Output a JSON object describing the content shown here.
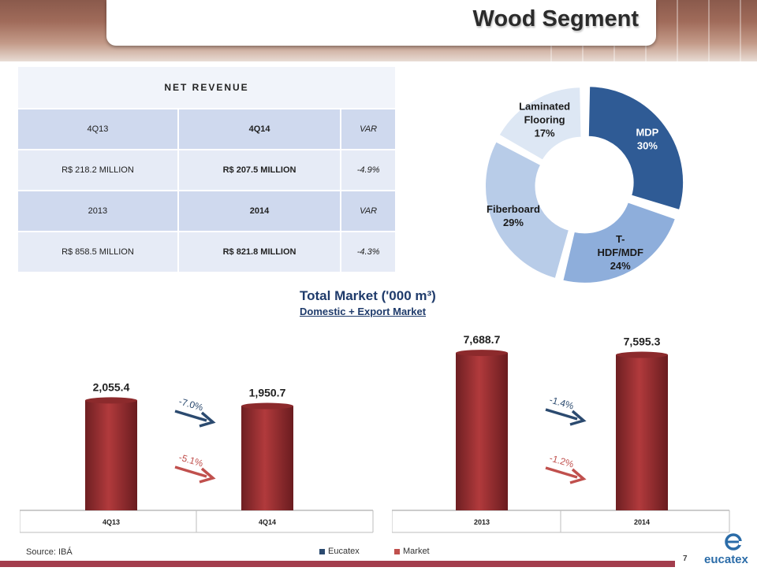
{
  "header": {
    "title": "Wood Segment"
  },
  "net_table": {
    "header": "NET REVENUE",
    "rows": [
      [
        "4Q13",
        "4Q14",
        "VAR"
      ],
      [
        "R$ 218.2 MILLION",
        "R$ 207.5 MILLION",
        "-4.9%"
      ],
      [
        "2013",
        "2014",
        "VAR"
      ],
      [
        "R$ 858.5 MILLION",
        "R$ 821.8 MILLION",
        "-4.3%"
      ]
    ]
  },
  "market": {
    "title": "Total Market ('000 m³)",
    "subtitle": "Domestic + Export Market"
  },
  "chart_data": [
    {
      "type": "pie",
      "labels": [
        "MDP",
        "T-HDF/MDF",
        "Fiberboard",
        "Laminated Flooring"
      ],
      "label_lines": [
        [
          "MDP",
          "30%"
        ],
        [
          "T-",
          "HDF/MDF",
          "24%"
        ],
        [
          "Fiberboard",
          "29%"
        ],
        [
          "Laminated",
          "Flooring",
          "17%"
        ]
      ],
      "values": [
        30,
        24,
        29,
        17
      ],
      "colors": [
        "#2f5b95",
        "#8eaedb",
        "#b8cce8",
        "#dde7f4"
      ]
    },
    {
      "type": "bar",
      "categories": [
        "4Q13",
        "4Q14"
      ],
      "values": [
        2055.4,
        1950.7
      ],
      "value_labels": [
        "2,055.4",
        "1,950.7"
      ],
      "ylim": [
        0,
        2400
      ],
      "annotations": [
        {
          "series": "Eucatex",
          "text": "-7.0%",
          "color": "#2b4a6f"
        },
        {
          "series": "Market",
          "text": "-5.1%",
          "color": "#c0504d"
        }
      ]
    },
    {
      "type": "bar",
      "categories": [
        "2013",
        "2014"
      ],
      "values": [
        7688.7,
        7595.3
      ],
      "value_labels": [
        "7,688.7",
        "7,595.3"
      ],
      "ylim": [
        0,
        8000
      ],
      "annotations": [
        {
          "series": "Eucatex",
          "text": "-1.4%",
          "color": "#2b4a6f"
        },
        {
          "series": "Market",
          "text": "-1.2%",
          "color": "#c0504d"
        }
      ]
    }
  ],
  "footer": {
    "source": "Source: IBÁ",
    "legend": [
      {
        "label": "Eucatex",
        "color": "#2b4a6f"
      },
      {
        "label": "Market",
        "color": "#c0504d"
      }
    ],
    "page_number": "7",
    "logo_text": "eucatex"
  }
}
